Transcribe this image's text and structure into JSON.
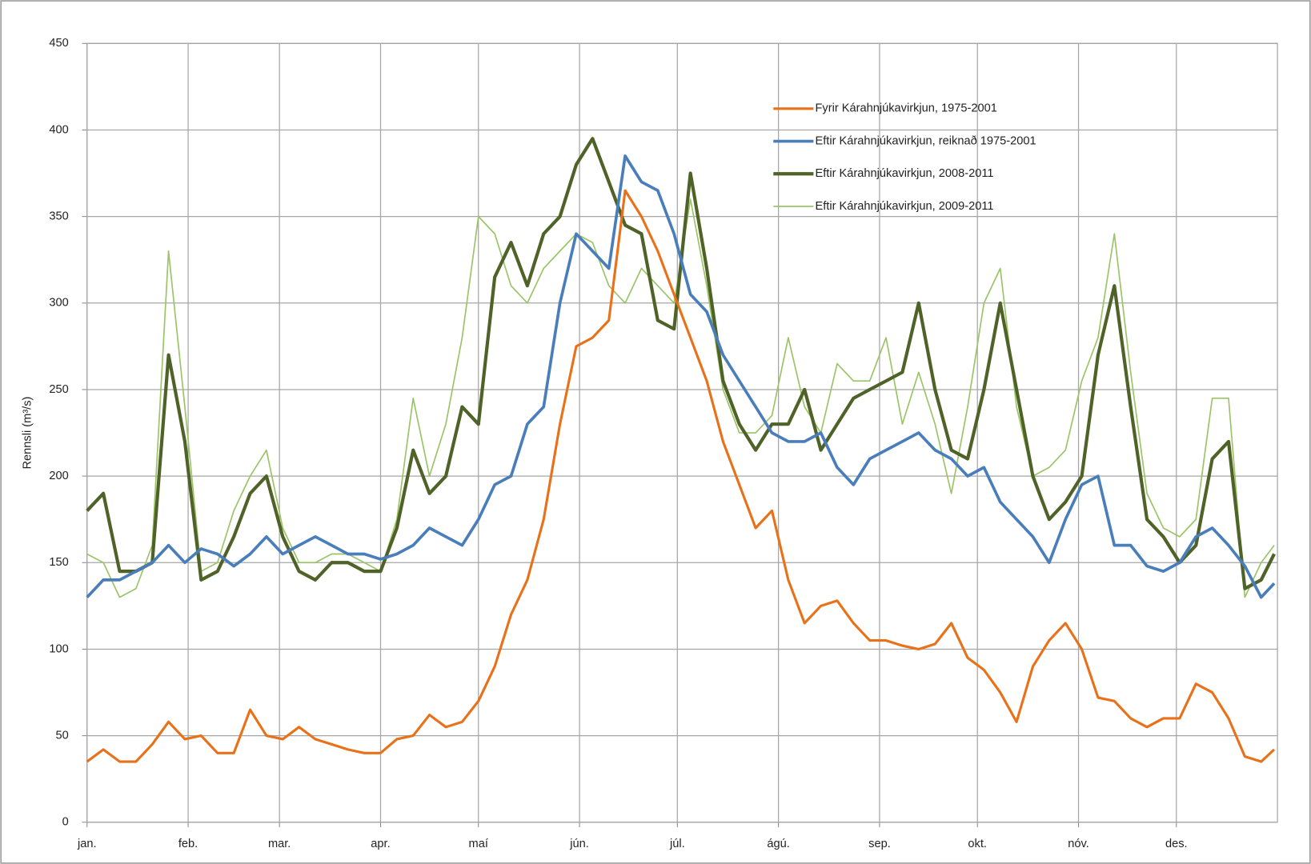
{
  "chart_data": {
    "type": "line",
    "ylabel": "Rennsli (m³/s)",
    "xlim": [
      0,
      365
    ],
    "xticks": [
      {
        "value": 0,
        "label": "jan."
      },
      {
        "value": 31,
        "label": "feb."
      },
      {
        "value": 59,
        "label": "mar."
      },
      {
        "value": 90,
        "label": "apr."
      },
      {
        "value": 120,
        "label": "maí"
      },
      {
        "value": 151,
        "label": "jún."
      },
      {
        "value": 181,
        "label": "júl."
      },
      {
        "value": 212,
        "label": "ágú."
      },
      {
        "value": 243,
        "label": "sep."
      },
      {
        "value": 273,
        "label": "okt."
      },
      {
        "value": 304,
        "label": "nóv."
      },
      {
        "value": 334,
        "label": "des."
      }
    ],
    "ylim": [
      0,
      450
    ],
    "yticks": [
      0,
      50,
      100,
      150,
      200,
      250,
      300,
      350,
      400,
      450
    ],
    "grid": true,
    "legend": "upper right",
    "x": [
      0,
      5,
      10,
      15,
      20,
      25,
      30,
      35,
      40,
      45,
      50,
      55,
      60,
      65,
      70,
      75,
      80,
      85,
      90,
      95,
      100,
      105,
      110,
      115,
      120,
      125,
      130,
      135,
      140,
      145,
      150,
      155,
      160,
      165,
      170,
      175,
      180,
      185,
      190,
      195,
      200,
      205,
      210,
      215,
      220,
      225,
      230,
      235,
      240,
      245,
      250,
      255,
      260,
      265,
      270,
      275,
      280,
      285,
      290,
      295,
      300,
      305,
      310,
      315,
      320,
      325,
      330,
      335,
      340,
      345,
      350,
      355,
      360,
      364
    ],
    "series": [
      {
        "name": "Fyrir Kárahnjúkavirkjun, 1975-2001",
        "color": "#e8711a",
        "width": 3,
        "values": [
          35,
          42,
          35,
          35,
          45,
          58,
          48,
          50,
          40,
          40,
          65,
          50,
          48,
          55,
          48,
          45,
          42,
          40,
          40,
          48,
          50,
          62,
          55,
          58,
          70,
          90,
          120,
          140,
          175,
          230,
          275,
          280,
          290,
          365,
          350,
          330,
          305,
          280,
          255,
          220,
          195,
          170,
          180,
          140,
          115,
          125,
          128,
          115,
          105,
          105,
          102,
          100,
          103,
          115,
          95,
          88,
          75,
          58,
          90,
          105,
          115,
          100,
          72,
          70,
          60,
          55,
          60,
          60,
          80,
          75,
          60,
          38,
          35,
          42
        ]
      },
      {
        "name": "Eftir Kárahnjúkavirkjun, reiknað 1975-2001",
        "color": "#4a7ebb",
        "width": 3.5,
        "values": [
          130,
          140,
          140,
          145,
          150,
          160,
          150,
          158,
          155,
          148,
          155,
          165,
          155,
          160,
          165,
          160,
          155,
          155,
          152,
          155,
          160,
          170,
          165,
          160,
          175,
          195,
          200,
          230,
          240,
          300,
          340,
          330,
          320,
          385,
          370,
          365,
          340,
          305,
          295,
          270,
          255,
          240,
          225,
          220,
          220,
          225,
          205,
          195,
          210,
          215,
          220,
          225,
          215,
          210,
          200,
          205,
          185,
          175,
          165,
          150,
          175,
          195,
          200,
          160,
          160,
          148,
          145,
          150,
          165,
          170,
          160,
          148,
          130,
          138
        ]
      },
      {
        "name": "Eftir Kárahnjúkavirkjun, 2008-2011",
        "color": "#4f6228",
        "width": 4,
        "values": [
          180,
          190,
          145,
          145,
          150,
          270,
          220,
          140,
          145,
          165,
          190,
          200,
          165,
          145,
          140,
          150,
          150,
          145,
          145,
          170,
          215,
          190,
          200,
          240,
          230,
          315,
          335,
          310,
          340,
          350,
          380,
          395,
          370,
          345,
          340,
          290,
          285,
          375,
          320,
          255,
          230,
          215,
          230,
          230,
          250,
          215,
          230,
          245,
          250,
          255,
          260,
          300,
          250,
          215,
          210,
          250,
          300,
          250,
          200,
          175,
          185,
          200,
          270,
          310,
          240,
          175,
          165,
          150,
          160,
          210,
          220,
          135,
          140,
          155
        ]
      },
      {
        "name": "Eftir Kárahnjúkavirkjun, 2009-2011",
        "color": "#9bc466",
        "width": 1.6,
        "values": [
          155,
          150,
          130,
          135,
          160,
          330,
          240,
          145,
          150,
          180,
          200,
          215,
          170,
          150,
          150,
          155,
          155,
          150,
          145,
          175,
          245,
          200,
          230,
          280,
          350,
          340,
          310,
          300,
          320,
          330,
          340,
          335,
          310,
          300,
          320,
          310,
          300,
          360,
          310,
          250,
          225,
          225,
          235,
          280,
          240,
          225,
          265,
          255,
          255,
          280,
          230,
          260,
          230,
          190,
          240,
          300,
          320,
          240,
          200,
          205,
          215,
          255,
          280,
          340,
          260,
          190,
          170,
          165,
          175,
          245,
          245,
          130,
          150,
          160
        ]
      }
    ]
  }
}
